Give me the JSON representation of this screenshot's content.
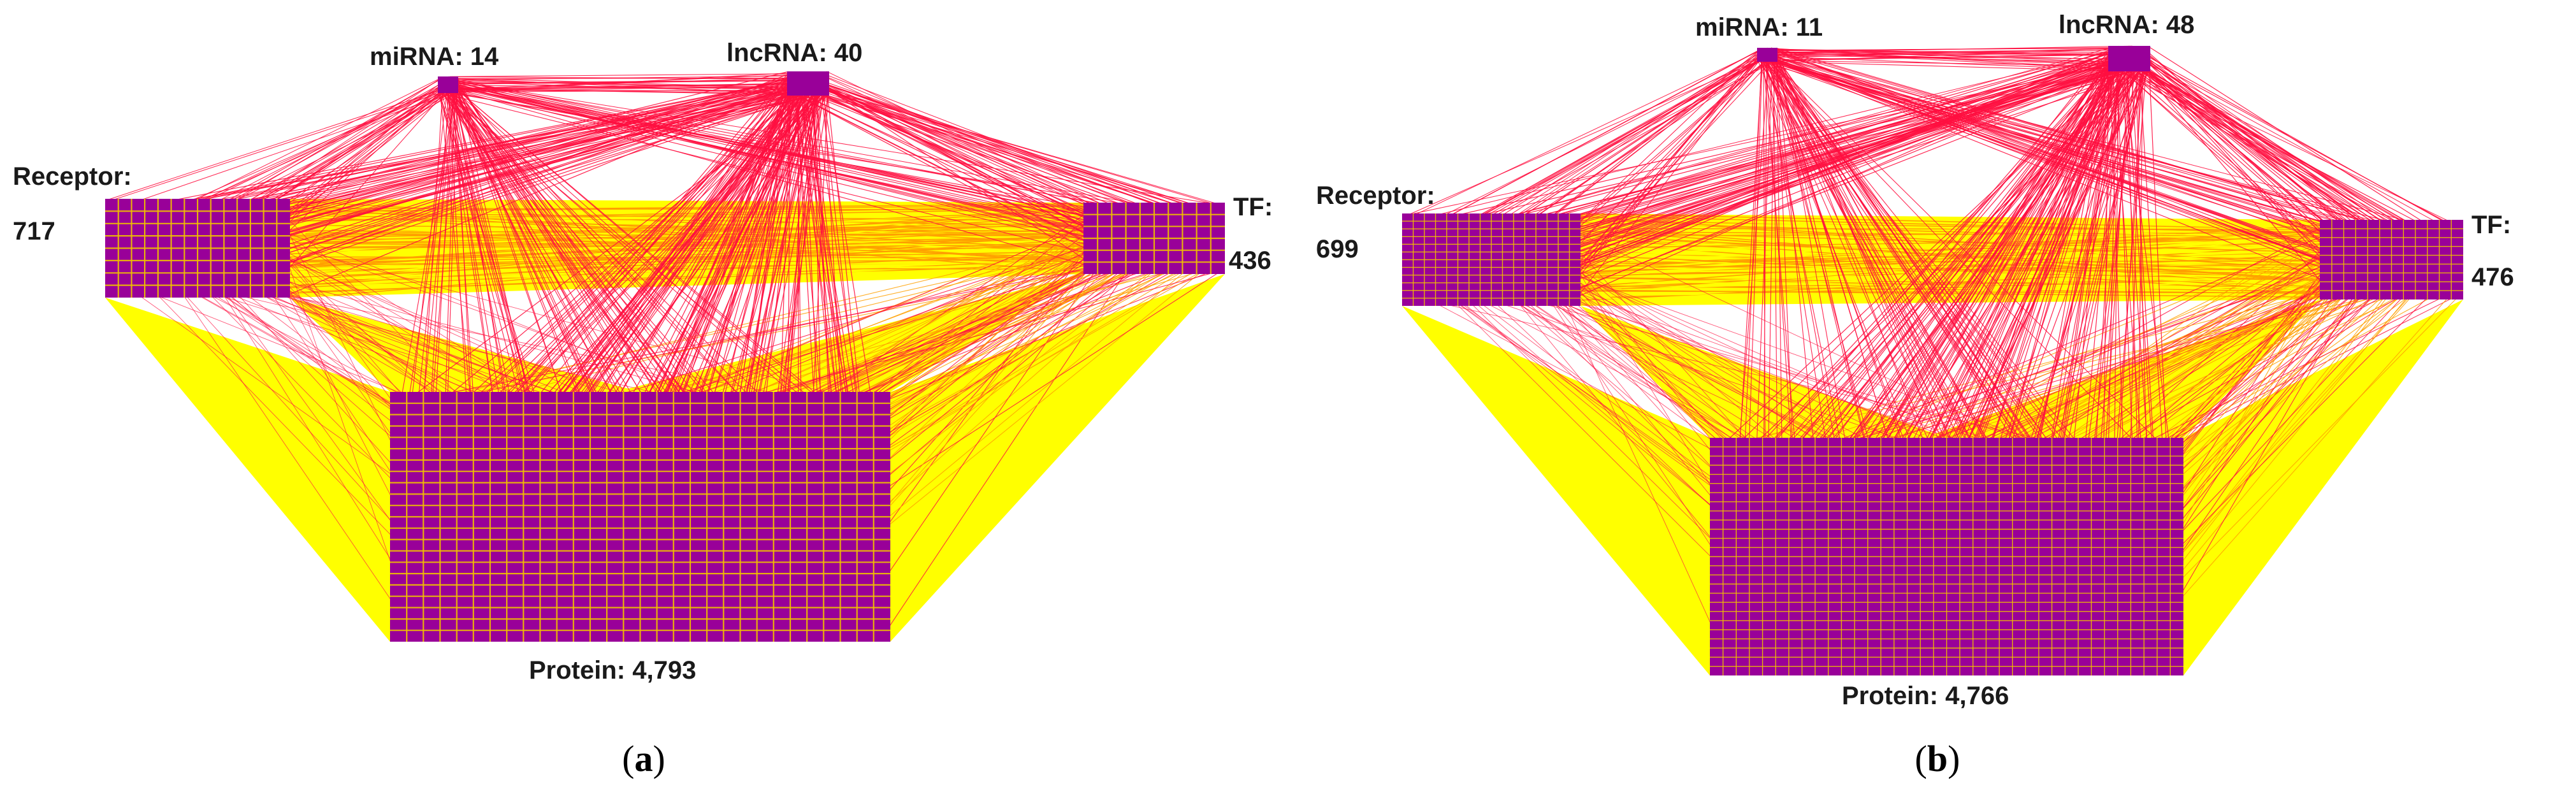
{
  "colors": {
    "node_fill": "#990099",
    "node_grid": "#f0c000",
    "edge_red": "#ff1040",
    "edge_yellow": "#ffff00",
    "edge_orange": "#ffa000"
  },
  "panels": [
    {
      "id": "a",
      "caption": {
        "open": "(",
        "letter": "a",
        "close": ")"
      },
      "nodes": {
        "mirna": {
          "label": "miRNA: 14"
        },
        "lncrna": {
          "label": "lncRNA: 40"
        },
        "receptor": {
          "label_line1": "Receptor:",
          "label_line2": "717"
        },
        "tf": {
          "label_line1": "TF:",
          "label_line2": "436"
        },
        "protein": {
          "label": "Protein: 4,793"
        }
      }
    },
    {
      "id": "b",
      "caption": {
        "open": "(",
        "letter": "b",
        "close": ")"
      },
      "nodes": {
        "mirna": {
          "label": "miRNA: 11"
        },
        "lncrna": {
          "label": "lncRNA: 48"
        },
        "receptor": {
          "label_line1": "Receptor:",
          "label_line2": "699"
        },
        "tf": {
          "label_line1": "TF:",
          "label_line2": "476"
        },
        "protein": {
          "label": "Protein: 4,766"
        }
      }
    }
  ]
}
